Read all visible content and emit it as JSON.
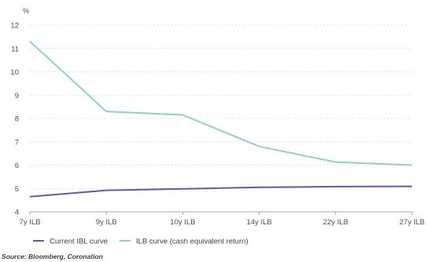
{
  "chart_data": {
    "type": "line",
    "unit_label": "%",
    "categories": [
      "7y ILB",
      "9y ILB",
      "10y ILB",
      "14y ILB",
      "22y ILB",
      "27y ILB"
    ],
    "yticks": [
      4,
      5,
      6,
      7,
      8,
      9,
      10,
      11,
      12
    ],
    "ylim": [
      4,
      12
    ],
    "grid": "horizontal dotted",
    "legend_position": "bottom",
    "series": [
      {
        "name": "Current IBL curve",
        "color": "#5b5ea6",
        "values": [
          4.65,
          4.92,
          4.98,
          5.05,
          5.08,
          5.09
        ]
      },
      {
        "name": "ILB curve (cash equivalent return)",
        "color": "#8fd3b6",
        "values": [
          11.3,
          8.3,
          8.15,
          6.8,
          6.13,
          6.0
        ]
      }
    ],
    "source": "Source: Bloomberg, Coronation"
  }
}
